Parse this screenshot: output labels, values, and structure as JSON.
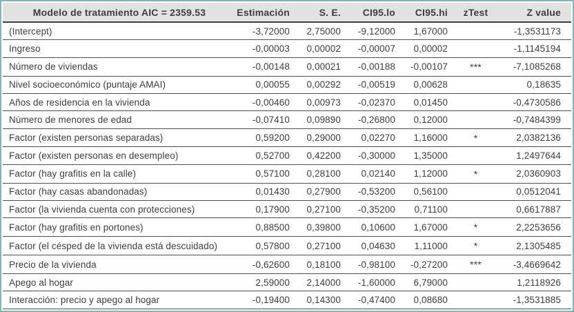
{
  "chart_data": {
    "type": "table",
    "title": "Modelo de tratamiento AIC = 2359.53",
    "columns": [
      "Estimación",
      "S. E.",
      "CI95.lo",
      "CI95.hi",
      "zTest",
      "Z value"
    ],
    "rows": [
      {
        "label": "(Intercept)",
        "est": "-3,72000",
        "se": "2,75000",
        "lo": "-9,12000",
        "hi": "1,67000",
        "ztest": "",
        "zvalue": "-1,3531173"
      },
      {
        "label": "Ingreso",
        "est": "-0,00003",
        "se": "0,00002",
        "lo": "-0,00007",
        "hi": "0,00002",
        "ztest": "",
        "zvalue": "-1,1145194"
      },
      {
        "label": "Número de viviendas",
        "est": "-0,00148",
        "se": "0,00021",
        "lo": "-0,00188",
        "hi": "-0,00107",
        "ztest": "***",
        "zvalue": "-7,1085268"
      },
      {
        "label": "Nivel socioeconómico (puntaje AMAI)",
        "est": "0,00055",
        "se": "0,00292",
        "lo": "-0,00519",
        "hi": "0,00628",
        "ztest": "",
        "zvalue": "0,18635"
      },
      {
        "label": "Años de residencia en la vivienda",
        "est": "-0,00460",
        "se": "0,00973",
        "lo": "-0,02370",
        "hi": "0,01450",
        "ztest": "",
        "zvalue": "-0,4730586"
      },
      {
        "label": "Número de menores de edad",
        "est": "-0,07410",
        "se": "0,09890",
        "lo": "-0,26800",
        "hi": "0,12000",
        "ztest": "",
        "zvalue": "-0,7484399"
      },
      {
        "label": "Factor (existen personas separadas)",
        "est": "0,59200",
        "se": "0,29000",
        "lo": "0,02270",
        "hi": "1,16000",
        "ztest": "*",
        "zvalue": "2,0382136"
      },
      {
        "label": "Factor (existen personas en desempleo)",
        "est": "0,52700",
        "se": "0,42200",
        "lo": "-0,30000",
        "hi": "1,35000",
        "ztest": "",
        "zvalue": "1,2497644"
      },
      {
        "label": "Factor (hay grafitis en la calle)",
        "est": "0,57100",
        "se": "0,28100",
        "lo": "0,02140",
        "hi": "1,12000",
        "ztest": "*",
        "zvalue": "2,0360903"
      },
      {
        "label": "Factor (hay casas abandonadas)",
        "est": "0,01430",
        "se": "0,27900",
        "lo": "-0,53200",
        "hi": "0,56100",
        "ztest": "",
        "zvalue": "0,0512041"
      },
      {
        "label": "Factor (la vivienda cuenta con protecciones)",
        "est": "0,17900",
        "se": "0,27100",
        "lo": "-0,35200",
        "hi": "0,71100",
        "ztest": "",
        "zvalue": "0,6617887"
      },
      {
        "label": "Factor (hay grafitis en portones)",
        "est": "0,88500",
        "se": "0,39800",
        "lo": "0,10600",
        "hi": "1,67000",
        "ztest": "*",
        "zvalue": "2,2253656"
      },
      {
        "label": "Factor (el césped de la vivienda está descuidado)",
        "est": "0,57800",
        "se": "0,27100",
        "lo": "0,04630",
        "hi": "1,11000",
        "ztest": "*",
        "zvalue": "2,1305485"
      },
      {
        "label": "Precio de la vivienda",
        "est": "-0,62600",
        "se": "0,18100",
        "lo": "-0,98100",
        "hi": "-0,27200",
        "ztest": "***",
        "zvalue": "-3,4669642"
      },
      {
        "label": "Apego al hogar",
        "est": "2,59000",
        "se": "2,14000",
        "lo": "-1,60000",
        "hi": "6,79000",
        "ztest": "",
        "zvalue": "1,2118926"
      },
      {
        "label": "Interacción: precio y apego al hogar",
        "est": "-0,19400",
        "se": "0,14300",
        "lo": "-0,47400",
        "hi": "0,08680",
        "ztest": "",
        "zvalue": "-1,3531885"
      }
    ]
  },
  "colors": {
    "frame_border": "#7fb7ae",
    "header_bg": "#e2e2e2",
    "text": "#3d3d3d",
    "row_line": "#4c4c4c"
  }
}
